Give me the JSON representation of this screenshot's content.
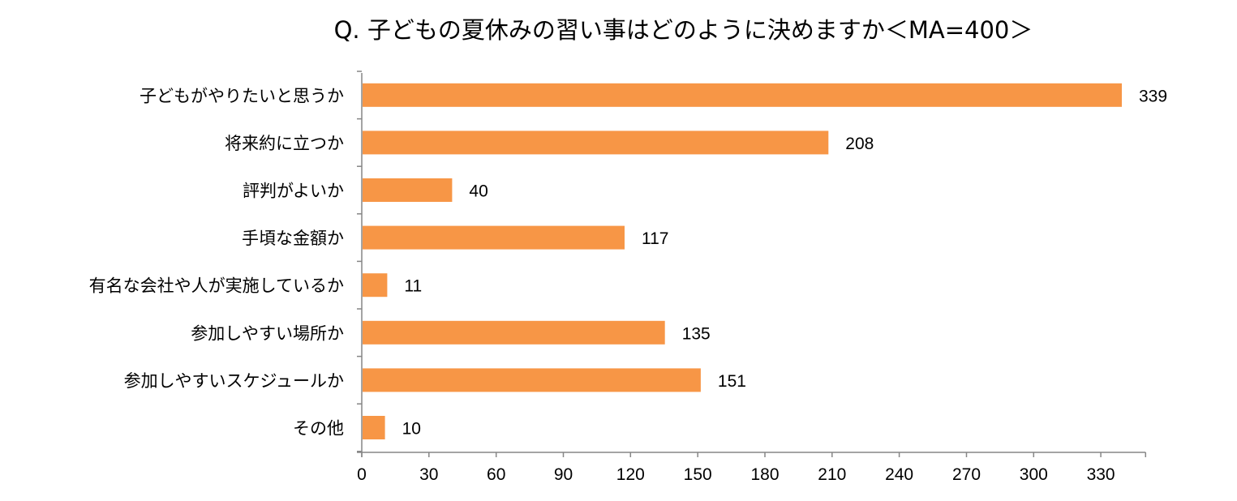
{
  "chart_data": {
    "type": "bar",
    "orientation": "horizontal",
    "title": "Q. 子どもの夏休みの習い事はどのように決めますか＜MA=400＞",
    "categories": [
      "子どもがやりたいと思うか",
      "将来約に立つか",
      "評判がよいか",
      "手頃な金額か",
      "有名な会社や人が実施しているか",
      "参加しやすい場所か",
      "参加しやすいスケジュールか",
      "その他"
    ],
    "values": [
      339,
      208,
      40,
      117,
      11,
      135,
      151,
      10
    ],
    "x_ticks": [
      0,
      30,
      60,
      90,
      120,
      150,
      180,
      210,
      240,
      270,
      300,
      330
    ],
    "xlim": [
      0,
      350
    ],
    "bar_color": "#F79646",
    "grid": false,
    "data_labels": true
  }
}
